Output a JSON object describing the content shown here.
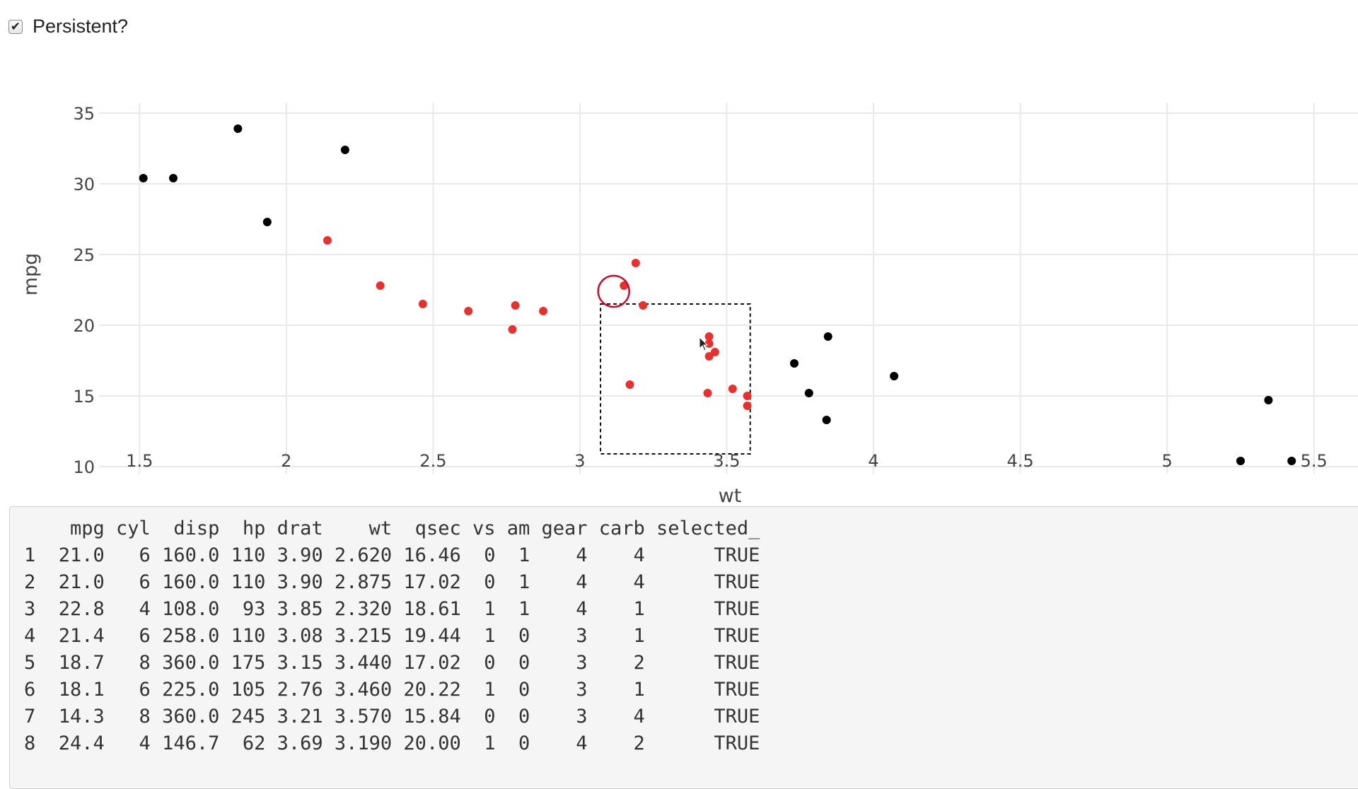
{
  "checkbox": {
    "label": "Persistent?",
    "checked": true
  },
  "chart_data": {
    "type": "scatter",
    "xlabel": "wt",
    "ylabel": "mpg",
    "xlim": [
      1.35,
      5.65
    ],
    "ylim": [
      9,
      36
    ],
    "xticks": [
      1.5,
      2,
      2.5,
      3,
      3.5,
      4,
      4.5,
      5,
      5.5
    ],
    "xtick_labels": [
      "1.5",
      "2",
      "2.5",
      "3",
      "3.5",
      "4",
      "4.5",
      "5",
      "5.5"
    ],
    "yticks": [
      10,
      15,
      20,
      25,
      30,
      35
    ],
    "ytick_labels": [
      "10",
      "15",
      "20",
      "25",
      "30",
      "35"
    ],
    "grid": true,
    "series": [
      {
        "color": "#000000",
        "points": [
          {
            "x": 1.513,
            "y": 30.4
          },
          {
            "x": 1.615,
            "y": 30.4
          },
          {
            "x": 1.835,
            "y": 33.9
          },
          {
            "x": 1.935,
            "y": 27.3
          },
          {
            "x": 2.2,
            "y": 32.4
          },
          {
            "x": 3.73,
            "y": 17.3
          },
          {
            "x": 3.78,
            "y": 15.2
          },
          {
            "x": 3.84,
            "y": 13.3
          },
          {
            "x": 3.845,
            "y": 19.2
          },
          {
            "x": 4.07,
            "y": 16.4
          },
          {
            "x": 5.25,
            "y": 10.4
          },
          {
            "x": 5.345,
            "y": 14.7
          },
          {
            "x": 5.424,
            "y": 10.4
          }
        ]
      },
      {
        "color": "#e8312f",
        "points": [
          {
            "x": 2.14,
            "y": 26.0
          },
          {
            "x": 2.32,
            "y": 22.8
          },
          {
            "x": 2.465,
            "y": 21.5
          },
          {
            "x": 2.62,
            "y": 21.0
          },
          {
            "x": 2.77,
            "y": 19.7
          },
          {
            "x": 2.78,
            "y": 21.4
          },
          {
            "x": 2.875,
            "y": 21.0
          },
          {
            "x": 3.15,
            "y": 22.8
          },
          {
            "x": 3.17,
            "y": 15.8
          },
          {
            "x": 3.19,
            "y": 24.4
          },
          {
            "x": 3.215,
            "y": 21.4
          },
          {
            "x": 3.435,
            "y": 15.2
          },
          {
            "x": 3.44,
            "y": 19.2
          },
          {
            "x": 3.44,
            "y": 18.7
          },
          {
            "x": 3.44,
            "y": 17.8
          },
          {
            "x": 3.46,
            "y": 18.1
          },
          {
            "x": 3.52,
            "y": 15.5
          },
          {
            "x": 3.57,
            "y": 15.0
          },
          {
            "x": 3.57,
            "y": 14.3
          }
        ]
      }
    ],
    "hover_marker": {
      "x": 3.115,
      "y": 22.4,
      "color": "#c8102e"
    },
    "selection_box": {
      "x0": 3.07,
      "x1": 3.58,
      "y0": 10.9,
      "y1": 21.5
    }
  },
  "output": {
    "header": "    mpg cyl  disp  hp drat    wt  qsec vs am gear carb selected_",
    "rows": [
      "1  21.0   6 160.0 110 3.90 2.620 16.46  0  1    4    4      TRUE",
      "2  21.0   6 160.0 110 3.90 2.875 17.02  0  1    4    4      TRUE",
      "3  22.8   4 108.0  93 3.85 2.320 18.61  1  1    4    1      TRUE",
      "4  21.4   6 258.0 110 3.08 3.215 19.44  1  0    3    1      TRUE",
      "5  18.7   8 360.0 175 3.15 3.440 17.02  0  0    3    2      TRUE",
      "6  18.1   6 225.0 105 2.76 3.460 20.22  1  0    3    1      TRUE",
      "7  14.3   8 360.0 245 3.21 3.570 15.84  0  0    3    4      TRUE",
      "8  24.4   4 146.7  62 3.69 3.190 20.00  1  0    4    2      TRUE"
    ]
  }
}
